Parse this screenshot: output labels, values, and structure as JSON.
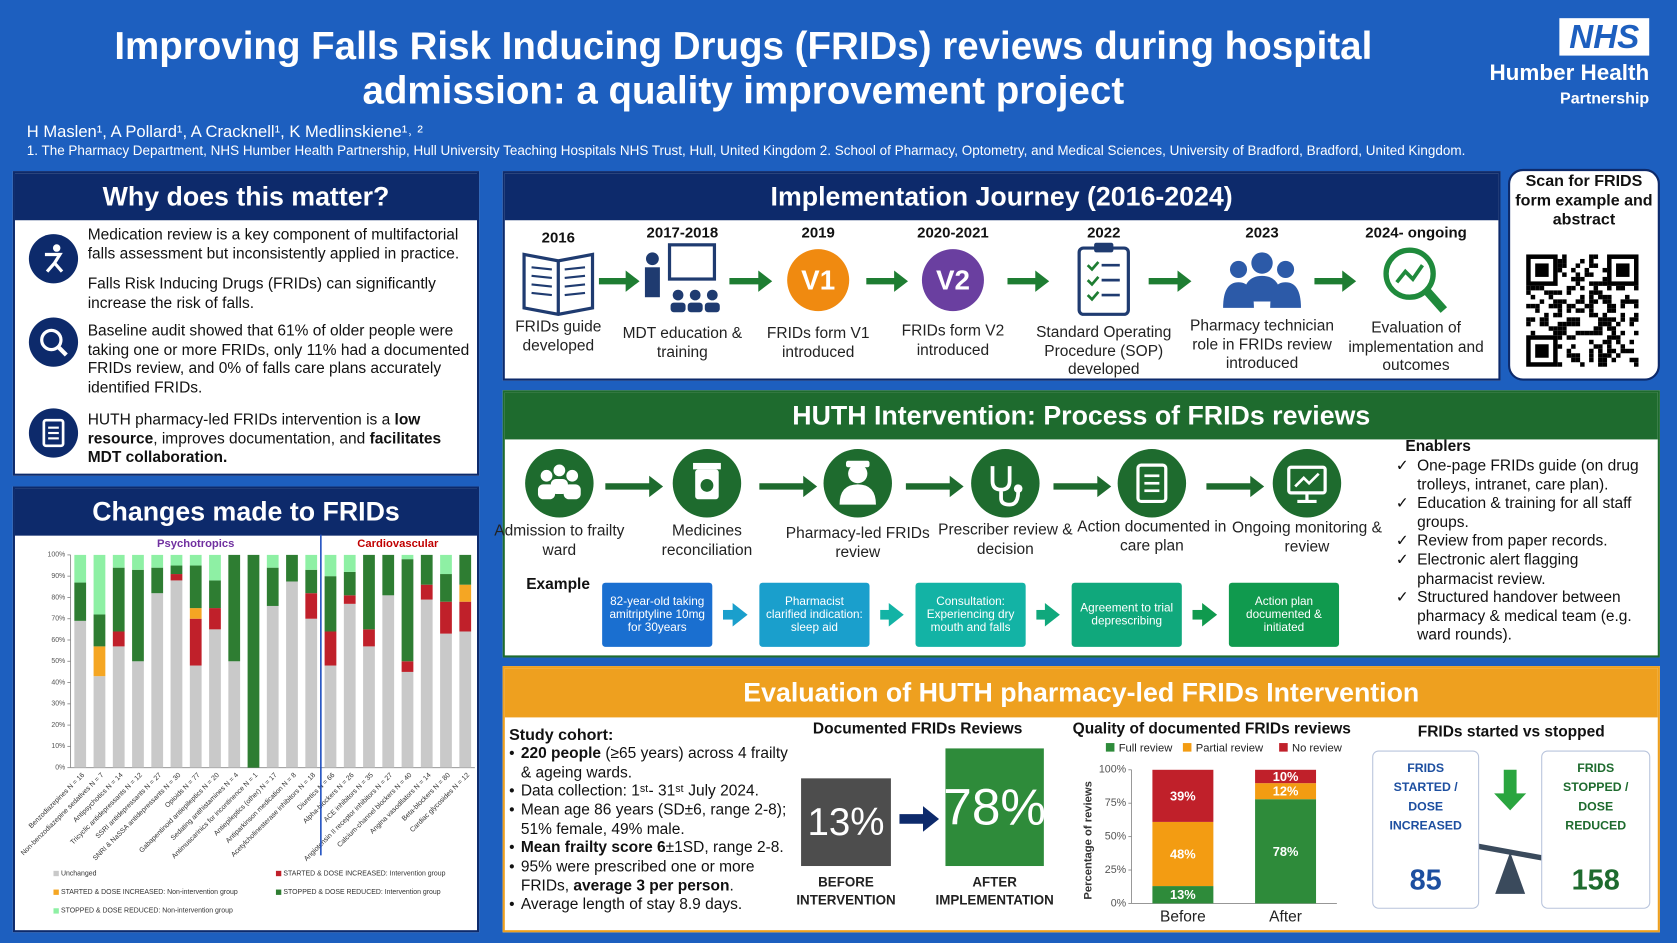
{
  "header": {
    "title": [
      "Improving Falls Risk Inducing Drugs (FRIDs) reviews during hospital",
      "admission: a quality improvement project"
    ],
    "authors": "H Maslen¹, A Pollard¹, A Cracknell¹, K Medlinskiene¹˒ ²",
    "affiliations": "1. The Pharmacy Department, NHS Humber Health Partnership, Hull University Teaching Hospitals NHS Trust, Hull, United Kingdom 2. School of Pharmacy, Optometry, and Medical Sciences, University of Bradford, Bradford, United Kingdom.",
    "logo": "NHS",
    "organisation": [
      "Humber Health",
      "Partnership"
    ]
  },
  "why": {
    "title": "Why does this matter?",
    "items": [
      "Medication review is a key component of multifactorial falls assessment but inconsistently applied in practice.",
      "Falls Risk Inducing Drugs (FRIDs) can significantly increase the risk of falls.",
      "Baseline audit showed that 61% of older people were taking one or more FRIDs, only 11% had a documented FRIDs review, and 0% of falls care plans accurately identified FRIDs.",
      [
        {
          "t": "HUTH pharmacy-led FRIDs intervention is a "
        },
        {
          "t": "low resource",
          "b": true
        },
        {
          "t": ", improves documentation, and "
        },
        {
          "t": "facilitates MDT collaboration.",
          "b": true
        }
      ]
    ]
  },
  "changes": {
    "title": "Changes made to FRIDs"
  },
  "journey": {
    "title": "Implementation Journey (2016-2024)",
    "steps": [
      {
        "year": "2016",
        "label": "FRIDs guide developed"
      },
      {
        "year": "2017-2018",
        "label": "MDT education & training"
      },
      {
        "year": "2019",
        "badge": "V1",
        "label": "FRIDs form V1 introduced"
      },
      {
        "year": "2020-2021",
        "badge": "V2",
        "label": "FRIDs form V2 introduced"
      },
      {
        "year": "2022",
        "label": "Standard Operating Procedure (SOP) developed"
      },
      {
        "year": "2023",
        "label": "Pharmacy technician role in FRIDs review introduced"
      },
      {
        "year": "2024- ongoing",
        "label": "Evaluation of implementation and outcomes"
      }
    ]
  },
  "qr": {
    "text": "Scan for FRIDS form example and abstract"
  },
  "process": {
    "title": "HUTH Intervention: Process of FRIDs reviews",
    "steps": [
      "Admission to frailty ward",
      "Medicines reconciliation",
      "Pharmacy-led FRIDs review",
      "Prescriber review & decision",
      "Action documented in care plan",
      "Ongoing monitoring & review"
    ],
    "example_label": "Example",
    "examples": [
      "82-year-old taking amitriptyline 10mg for 30years",
      "Pharmacist clarified indication: sleep aid",
      "Consultation: Experiencing dry mouth and falls",
      "Agreement to trial deprescribing",
      "Action plan documented & initiated"
    ],
    "enablers_title": "Enablers",
    "enablers": [
      "One-page FRIDs guide (on drug trolleys, intranet, care plan).",
      "Education & training for all staff groups.",
      "Review from paper records.",
      "Electronic alert flagging pharmacist review.",
      "Structured handover between pharmacy & medical team (e.g. ward rounds)."
    ]
  },
  "evaluation": {
    "title": "Evaluation of HUTH pharmacy-led FRIDs Intervention",
    "cohort_title": "Study cohort:",
    "cohort": [
      [
        {
          "t": "220 people",
          "b": true
        },
        {
          "t": " (≥65 years) across 4 frailty & ageing wards."
        }
      ],
      "Data collection: 1ˢᵗ- 31ˢᵗ July 2024.",
      "Mean age 86 years (SD±6, range 2-8); 51% female, 49% male.",
      [
        {
          "t": "Mean frailty score 6",
          "b": true
        },
        {
          "t": "±1SD, range 2-8."
        }
      ],
      [
        {
          "t": "95% were prescribed one or more FRIDs, "
        },
        {
          "t": "average 3 per person",
          "b": true
        },
        {
          "t": "."
        }
      ],
      "Average length of stay 8.9 days."
    ],
    "documented": {
      "title": "Documented FRIDs Reviews",
      "before": "13%",
      "before_label": "BEFORE INTERVENTION",
      "after": "78%",
      "after_label": "AFTER IMPLEMENTATION"
    },
    "started_stopped": {
      "title": "FRIDs started vs stopped",
      "started_label": "FRIDS STARTED / DOSE INCREASED",
      "started": 85,
      "stopped_label": "FRIDS STOPPED / DOSE REDUCED",
      "stopped": 158
    }
  },
  "chart_data": [
    {
      "type": "bar",
      "stacked": true,
      "categories": [
        "Benzodiazepines N = 16",
        "Non-benzodiazepine sedatives N = 7",
        "Antipsychotics N = 14",
        "Tricyclic antidepressants N = 12",
        "SSRI antidepressants N = 27",
        "SNRI & NaSSA antidepressants N = 30",
        "Opioids N = 77",
        "Gabapentinoid antiepileptics N = 20",
        "Sedating antihistamines N = 4",
        "Antimuscarinics for incontinence N = 1",
        "Antiepileptics (other) N = 17",
        "Antiparkinson medication N = 8",
        "Acetylcholinesterase inhibitors N = 18",
        "Diuretics N = 66",
        "Alpha-blockers N = 26",
        "ACE inhibitors N = 35",
        "Angiotensin II receptor inhibitors N = 27",
        "Calcium-channel blockers N = 40",
        "Angina vasodilators N = 14",
        "Beta-blockers N = 80",
        "Cardiac glycosides N = 12"
      ],
      "category_groups": [
        "Psychotropics",
        "Psychotropics",
        "Psychotropics",
        "Psychotropics",
        "Psychotropics",
        "Psychotropics",
        "Psychotropics",
        "Psychotropics",
        "Psychotropics",
        "Psychotropics",
        "Psychotropics",
        "Psychotropics",
        "Psychotropics",
        "Cardiovascular",
        "Cardiovascular",
        "Cardiovascular",
        "Cardiovascular",
        "Cardiovascular",
        "Cardiovascular",
        "Cardiovascular",
        "Cardiovascular"
      ],
      "groups": [
        {
          "name": "Psychotropics",
          "color": "#7030a0"
        },
        {
          "name": "Cardiovascular",
          "color": "#c00000"
        }
      ],
      "series": [
        {
          "name": "Unchanged",
          "color": "#c9c9c9",
          "values": [
            69,
            43,
            57,
            50,
            82,
            88,
            48,
            65,
            50,
            0,
            76,
            87.5,
            70,
            48,
            77,
            57,
            81,
            45,
            79,
            63,
            64
          ]
        },
        {
          "name": "STARTED & DOSE INCREASED: Intervention group",
          "color": "#c0202a",
          "values": [
            0,
            0,
            7,
            0,
            0,
            3,
            22,
            10,
            0,
            0,
            0,
            0,
            12,
            16,
            4,
            8,
            0,
            5,
            7,
            15,
            14
          ]
        },
        {
          "name": "STARTED & DOSE INCREASED: Non-intervention group",
          "color": "#f5a623",
          "values": [
            0,
            14,
            0,
            0,
            0,
            0,
            5,
            0,
            0,
            0,
            0,
            0,
            0,
            0,
            0,
            0,
            0,
            0,
            0,
            0,
            8
          ]
        },
        {
          "name": "STOPPED & DOSE REDUCED: Intervention group",
          "color": "#2e7d32",
          "values": [
            18,
            15,
            30,
            43,
            12,
            4,
            20,
            13,
            50,
            100,
            18,
            12.5,
            11,
            26,
            11,
            35,
            19,
            48,
            14,
            13,
            14
          ]
        },
        {
          "name": "STOPPED & DOSE REDUCED: Non-intervention group",
          "color": "#8ef0a4",
          "values": [
            13,
            28,
            6,
            7,
            6,
            5,
            5,
            12,
            0,
            0,
            6,
            0,
            7,
            10,
            8,
            0,
            0,
            2,
            0,
            9,
            0
          ]
        }
      ],
      "ylim": [
        0,
        100
      ],
      "yticks": [
        {
          "value": 0,
          "label": "0%"
        },
        {
          "value": 10,
          "label": "10%"
        },
        {
          "value": 20,
          "label": "20%"
        },
        {
          "value": 30,
          "label": "30%"
        },
        {
          "value": 40,
          "label": "40%"
        },
        {
          "value": 50,
          "label": "50%"
        },
        {
          "value": 60,
          "label": "60%"
        },
        {
          "value": 70,
          "label": "70%"
        },
        {
          "value": 80,
          "label": "80%"
        },
        {
          "value": 90,
          "label": "90%"
        },
        {
          "value": 100,
          "label": "100%"
        }
      ]
    },
    {
      "type": "bar",
      "stacked": true,
      "title": "Quality of documented FRIDs reviews",
      "y_label": "Percentage of reviews",
      "categories": [
        "Before",
        "After"
      ],
      "series": [
        {
          "name": "Full review",
          "color": "#2e8b3a",
          "values": [
            13,
            78
          ],
          "value_labels": [
            "13%",
            "78%"
          ]
        },
        {
          "name": "Partial review",
          "color": "#f39c12",
          "values": [
            48,
            12
          ],
          "value_labels": [
            "48%",
            "12%"
          ]
        },
        {
          "name": "No review",
          "color": "#c0202a",
          "values": [
            39,
            10
          ],
          "value_labels": [
            "39%",
            "10%"
          ]
        }
      ],
      "ylim": [
        0,
        100
      ],
      "yticks": [
        {
          "value": 0,
          "label": "0%"
        },
        {
          "value": 25,
          "label": "25%"
        },
        {
          "value": 50,
          "label": "50%"
        },
        {
          "value": 75,
          "label": "75%"
        },
        {
          "value": 100,
          "label": "100%"
        }
      ]
    }
  ]
}
